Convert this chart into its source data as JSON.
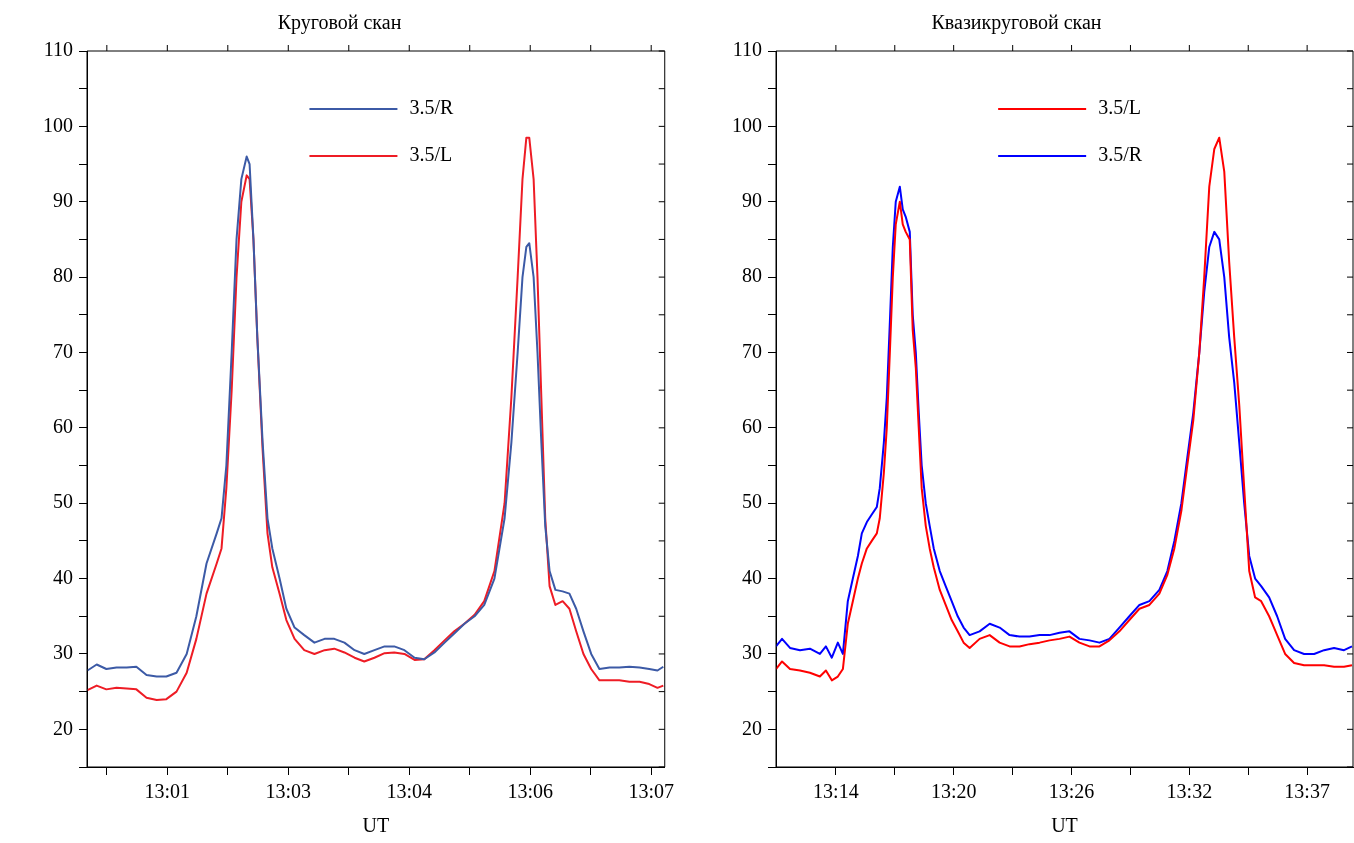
{
  "chart_data": [
    {
      "type": "line",
      "title": "Круговой скан",
      "xlabel": "UT",
      "legend": "top right",
      "grid": false,
      "marker": "none",
      "line_style": "solid",
      "xlim": [
        13.0028,
        13.1222
      ],
      "xticks": [
        {
          "value": 13.0069,
          "label": null
        },
        {
          "value": 13.0194,
          "label": "13:01"
        },
        {
          "value": 13.0319,
          "label": null
        },
        {
          "value": 13.0444,
          "label": "13:03"
        },
        {
          "value": 13.0569,
          "label": null
        },
        {
          "value": 13.0694,
          "label": "13:04"
        },
        {
          "value": 13.0819,
          "label": null
        },
        {
          "value": 13.0944,
          "label": "13:06"
        },
        {
          "value": 13.1069,
          "label": null
        },
        {
          "value": 13.1194,
          "label": "13:07"
        }
      ],
      "ylim": [
        15,
        110
      ],
      "yticks": [
        {
          "value": 15,
          "label": null
        },
        20,
        {
          "value": 25,
          "label": null
        },
        30,
        {
          "value": 35,
          "label": null
        },
        40,
        {
          "value": 45,
          "label": null
        },
        50,
        {
          "value": 55,
          "label": null
        },
        60,
        {
          "value": 65,
          "label": null
        },
        70,
        {
          "value": 75,
          "label": null
        },
        80,
        {
          "value": 85,
          "label": null
        },
        90,
        {
          "value": 95,
          "label": null
        },
        100,
        {
          "value": 105,
          "label": null
        },
        110
      ],
      "x": [
        13.0029,
        13.0048,
        13.0068,
        13.0089,
        13.011,
        13.013,
        13.0151,
        13.0172,
        13.0192,
        13.0213,
        13.0234,
        13.0254,
        13.0275,
        13.0296,
        13.0306,
        13.0316,
        13.0327,
        13.0337,
        13.0347,
        13.0358,
        13.0364,
        13.0372,
        13.038,
        13.0391,
        13.0401,
        13.0411,
        13.0426,
        13.044,
        13.0457,
        13.0477,
        13.0498,
        13.0519,
        13.0539,
        13.056,
        13.0581,
        13.0601,
        13.0622,
        13.0643,
        13.0663,
        13.0684,
        13.0705,
        13.0725,
        13.0746,
        13.0767,
        13.0787,
        13.0808,
        13.0829,
        13.0849,
        13.087,
        13.0891,
        13.0905,
        13.0918,
        13.0928,
        13.0936,
        13.0942,
        13.0951,
        13.0959,
        13.0967,
        13.0975,
        13.0984,
        13.0996,
        13.1011,
        13.1025,
        13.1039,
        13.1054,
        13.107,
        13.1087,
        13.1108,
        13.1128,
        13.1149,
        13.117,
        13.119,
        13.1207,
        13.1219
      ],
      "series": [
        {
          "name": "3.5/R",
          "color": "#3c5aa6",
          "values": [
            27.8,
            28.6,
            28.0,
            28.2,
            28.2,
            28.3,
            27.2,
            27.0,
            27.0,
            27.5,
            30,
            35,
            42,
            46,
            48,
            55,
            70,
            85,
            93,
            96,
            95,
            85,
            72,
            58,
            48,
            44,
            40,
            36,
            33.5,
            32.5,
            31.5,
            32,
            32,
            31.5,
            30.5,
            30,
            30.5,
            31,
            31,
            30.5,
            29.5,
            29.3,
            30.2,
            31.5,
            32.7,
            34,
            35,
            36.5,
            40,
            48,
            58,
            70,
            80,
            84,
            84.5,
            80,
            70,
            58,
            47,
            41,
            38.5,
            38.3,
            38,
            36,
            33,
            30,
            28,
            28.2,
            28.2,
            28.3,
            28.2,
            28,
            27.8,
            28.3
          ]
        },
        {
          "name": "3.5/L",
          "color": "#ee1c25",
          "values": [
            25.2,
            25.8,
            25.3,
            25.5,
            25.4,
            25.3,
            24.2,
            23.9,
            24,
            25,
            27.5,
            32,
            38,
            42,
            44,
            52,
            65,
            80,
            90,
            93.5,
            93,
            85,
            72,
            57,
            46,
            41.5,
            38,
            34.5,
            32,
            30.5,
            30,
            30.5,
            30.7,
            30.2,
            29.5,
            29,
            29.5,
            30.1,
            30.2,
            30,
            29.2,
            29.3,
            30.5,
            31.8,
            33,
            34,
            35.2,
            37,
            41,
            50,
            64,
            80,
            93,
            98.5,
            98.5,
            93,
            80,
            64,
            48,
            39,
            36.5,
            37,
            36,
            33,
            30,
            28,
            26.5,
            26.5,
            26.5,
            26.3,
            26.3,
            26,
            25.5,
            25.8
          ]
        }
      ]
    },
    {
      "type": "line",
      "title": "Квазикруговой скан",
      "xlabel": "UT",
      "legend": "top right",
      "grid": false,
      "marker": "none",
      "line_style": "solid",
      "xlim": [
        13.1888,
        13.6581
      ],
      "xticks": [
        {
          "value": 13.2375,
          "label": "13:14"
        },
        {
          "value": 13.2854,
          "label": null
        },
        {
          "value": 13.3333,
          "label": "13:20"
        },
        {
          "value": 13.3813,
          "label": null
        },
        {
          "value": 13.4292,
          "label": "13:26"
        },
        {
          "value": 13.4771,
          "label": null
        },
        {
          "value": 13.525,
          "label": "13:32"
        },
        {
          "value": 13.5729,
          "label": null
        },
        {
          "value": 13.6208,
          "label": "13:37"
        }
      ],
      "ylim": [
        15,
        110
      ],
      "yticks": [
        {
          "value": 15,
          "label": null
        },
        20,
        {
          "value": 25,
          "label": null
        },
        30,
        {
          "value": 35,
          "label": null
        },
        40,
        {
          "value": 45,
          "label": null
        },
        50,
        {
          "value": 55,
          "label": null
        },
        60,
        {
          "value": 65,
          "label": null
        },
        70,
        {
          "value": 75,
          "label": null
        },
        80,
        {
          "value": 85,
          "label": null
        },
        90,
        {
          "value": 95,
          "label": null
        },
        100,
        {
          "value": 105,
          "label": null
        },
        110
      ],
      "x": [
        13.1888,
        13.1937,
        13.2002,
        13.2083,
        13.2164,
        13.2245,
        13.2294,
        13.2342,
        13.2391,
        13.2432,
        13.2472,
        13.2513,
        13.2554,
        13.2586,
        13.2627,
        13.2667,
        13.2708,
        13.2732,
        13.2765,
        13.2789,
        13.2814,
        13.2838,
        13.2862,
        13.2895,
        13.2919,
        13.2943,
        13.2976,
        13.3,
        13.3025,
        13.3049,
        13.3073,
        13.3106,
        13.3138,
        13.3171,
        13.322,
        13.3268,
        13.3317,
        13.3366,
        13.3414,
        13.3463,
        13.3544,
        13.3626,
        13.3707,
        13.3788,
        13.3869,
        13.395,
        13.4032,
        13.4113,
        13.4194,
        13.4275,
        13.4356,
        13.4438,
        13.4519,
        13.46,
        13.4681,
        13.4762,
        13.4844,
        13.4925,
        13.5006,
        13.5071,
        13.5128,
        13.5185,
        13.5233,
        13.5282,
        13.5331,
        13.5371,
        13.5412,
        13.5453,
        13.5493,
        13.5534,
        13.5574,
        13.5615,
        13.5656,
        13.5696,
        13.5737,
        13.5785,
        13.5834,
        13.5899,
        13.5964,
        13.6029,
        13.6102,
        13.6183,
        13.6265,
        13.6346,
        13.6427,
        13.6508,
        13.6573
      ],
      "series": [
        {
          "name": "3.5/L",
          "color": "#ff0000",
          "values": [
            28,
            29,
            28,
            27.8,
            27.5,
            27,
            27.8,
            26.5,
            27,
            28,
            34,
            37,
            40,
            42,
            44,
            45,
            46,
            48,
            54,
            60,
            70,
            80,
            87,
            90,
            87,
            86,
            85,
            73,
            68,
            60,
            52,
            47,
            44,
            41.5,
            38.5,
            36.5,
            34.5,
            33,
            31.5,
            30.8,
            32,
            32.5,
            31.5,
            31,
            31,
            31.3,
            31.5,
            31.8,
            32,
            32.3,
            31.5,
            31,
            31,
            31.8,
            33,
            34.5,
            36,
            36.5,
            38,
            40.5,
            44,
            49,
            55,
            61,
            70,
            80,
            92,
            97,
            98.5,
            94,
            82,
            72,
            63,
            52,
            41,
            37.5,
            37,
            35,
            32.5,
            30,
            28.8,
            28.5,
            28.5,
            28.5,
            28.3,
            28.3,
            28.5
          ]
        },
        {
          "name": "3.5/R",
          "color": "#0000ff",
          "values": [
            31,
            32,
            30.8,
            30.5,
            30.7,
            30,
            31,
            29.5,
            31.5,
            30,
            37,
            40,
            43,
            46,
            47.5,
            48.5,
            49.5,
            52,
            58,
            64,
            74,
            84,
            90,
            92,
            89,
            88,
            86,
            75,
            70,
            62,
            55,
            50,
            47,
            44,
            41,
            39,
            37,
            35,
            33.5,
            32.5,
            33,
            34,
            33.5,
            32.5,
            32.3,
            32.3,
            32.5,
            32.5,
            32.8,
            33,
            32,
            31.8,
            31.5,
            32,
            33.5,
            35,
            36.5,
            37,
            38.5,
            41,
            45,
            50,
            56,
            62,
            70,
            78,
            84,
            86,
            85,
            80,
            72,
            66,
            58,
            50,
            43,
            40,
            39,
            37.5,
            35,
            32,
            30.5,
            30,
            30,
            30.5,
            30.8,
            30.5,
            31
          ]
        }
      ]
    }
  ]
}
